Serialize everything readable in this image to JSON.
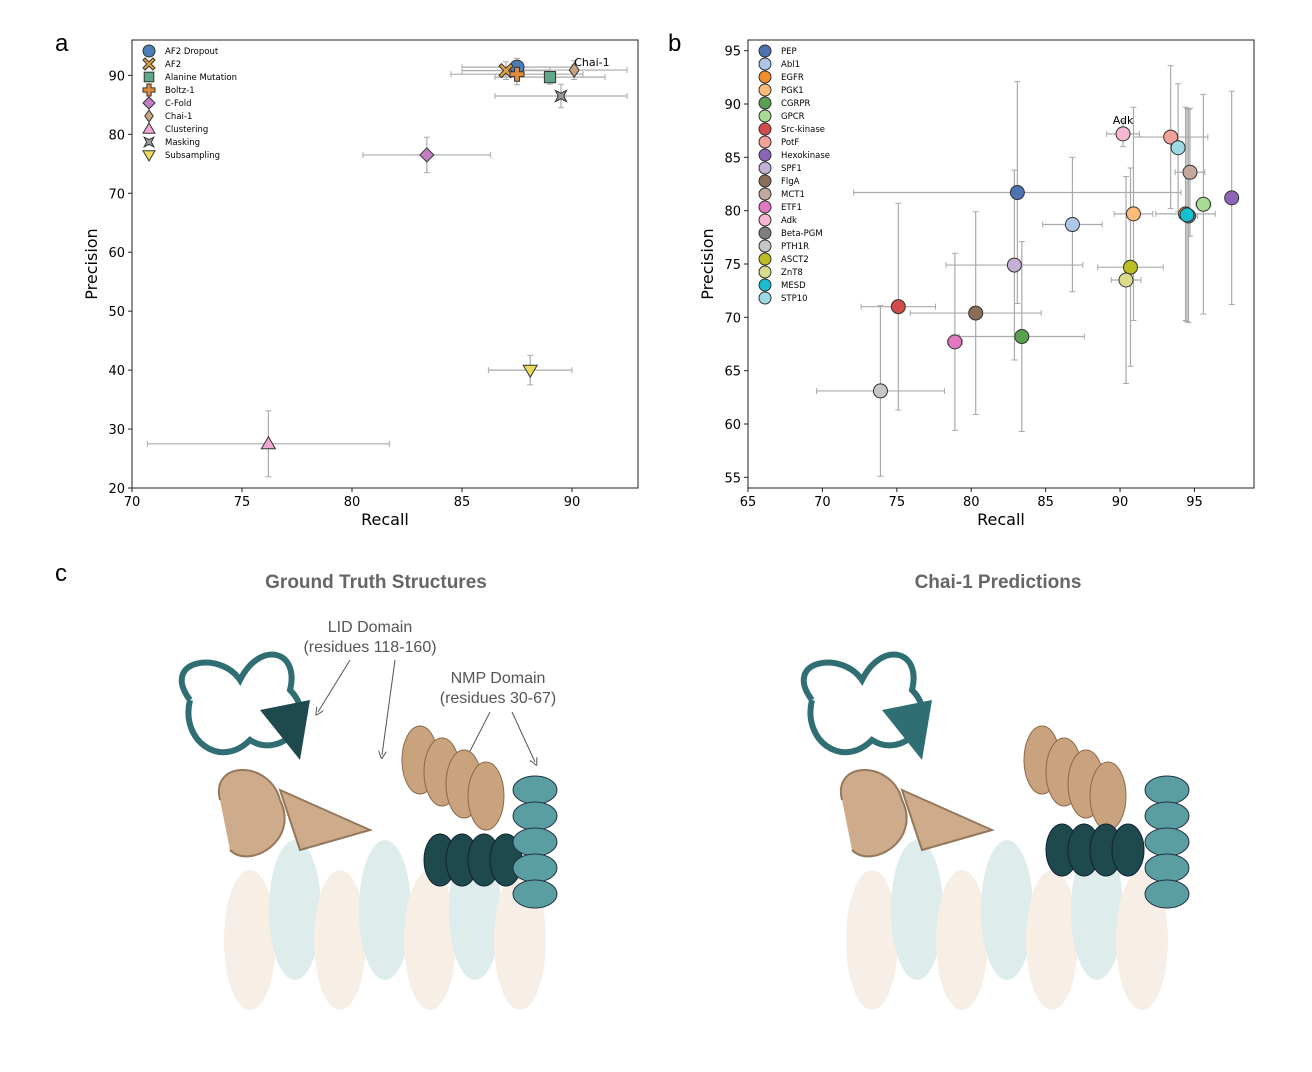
{
  "panels": {
    "a": "a",
    "b": "b",
    "c": "c"
  },
  "chart_data": [
    {
      "type": "scatter",
      "panel": "a",
      "xlabel": "Recall",
      "ylabel": "Precision",
      "xlim": [
        70,
        93
      ],
      "ylim": [
        20,
        96
      ],
      "xticks": [
        70,
        75,
        80,
        85,
        90
      ],
      "yticks": [
        20,
        30,
        40,
        50,
        60,
        70,
        80,
        90
      ],
      "legend": "top-left",
      "annotation": "Chai-1",
      "series": [
        {
          "name": "AF2 Dropout",
          "marker": "circle",
          "color": "#4c7fb8",
          "x": 87.5,
          "y": 91.4,
          "xerr": 2.5,
          "yerr": 1.5
        },
        {
          "name": "AF2",
          "marker": "x",
          "color": "#e0a040",
          "x": 87.0,
          "y": 90.8,
          "xerr": 2.0,
          "yerr": 1.5
        },
        {
          "name": "Alanine Mutation",
          "marker": "square",
          "color": "#5fa88a",
          "x": 89.0,
          "y": 89.7,
          "xerr": 2.5,
          "yerr": 1.2
        },
        {
          "name": "Boltz-1",
          "marker": "plus",
          "color": "#e08a3c",
          "x": 87.5,
          "y": 90.2,
          "xerr": 3.0,
          "yerr": 1.8
        },
        {
          "name": "C-Fold",
          "marker": "diamond",
          "color": "#c27fc4",
          "x": 83.4,
          "y": 76.5,
          "xerr": 2.9,
          "yerr": 3.0
        },
        {
          "name": "Chai-1",
          "marker": "thin-diamond",
          "color": "#c9a27e",
          "x": 90.1,
          "y": 90.9,
          "xerr": 2.4,
          "yerr": 1.6
        },
        {
          "name": "Clustering",
          "marker": "triangle-up",
          "color": "#f2a6d6",
          "x": 76.2,
          "y": 27.5,
          "xerr": 5.5,
          "yerr": 5.6
        },
        {
          "name": "Masking",
          "marker": "bowtie",
          "color": "#9a9a9a",
          "x": 89.5,
          "y": 86.5,
          "xerr": 3.0,
          "yerr": 2.0
        },
        {
          "name": "Subsampling",
          "marker": "triangle-down",
          "color": "#e8dc5a",
          "x": 88.1,
          "y": 40.0,
          "xerr": 1.9,
          "yerr": 2.5
        }
      ]
    },
    {
      "type": "scatter",
      "panel": "b",
      "xlabel": "Recall",
      "ylabel": "Precision",
      "xlim": [
        65,
        99
      ],
      "ylim": [
        54,
        96
      ],
      "xticks": [
        65,
        70,
        75,
        80,
        85,
        90,
        95
      ],
      "yticks": [
        55,
        60,
        65,
        70,
        75,
        80,
        85,
        90,
        95
      ],
      "legend": "top-left",
      "annotation": "Adk",
      "series": [
        {
          "name": "PEP",
          "color": "#4c72b0",
          "x": 83.1,
          "y": 81.7,
          "xerr": 11.0,
          "yerr": 10.4
        },
        {
          "name": "Abl1",
          "color": "#aec7e8",
          "x": 86.8,
          "y": 78.7,
          "xerr": 2.0,
          "yerr": 6.3
        },
        {
          "name": "EGFR",
          "color": "#f28e2b",
          "x": 94.4,
          "y": 79.7,
          "xerr": 2.0,
          "yerr": 10.0
        },
        {
          "name": "PGK1",
          "color": "#ffbb78",
          "x": 90.9,
          "y": 79.7,
          "xerr": 1.3,
          "yerr": 10.0
        },
        {
          "name": "CGRPR",
          "color": "#59a14f",
          "x": 83.4,
          "y": 68.2,
          "xerr": 4.2,
          "yerr": 8.9
        },
        {
          "name": "GPCR",
          "color": "#a8dc94",
          "x": 95.6,
          "y": 80.6,
          "xerr": 0.5,
          "yerr": 10.3
        },
        {
          "name": "Src-kinase",
          "color": "#d14b4b",
          "x": 75.1,
          "y": 71.0,
          "xerr": 2.5,
          "yerr": 9.7
        },
        {
          "name": "PotF",
          "color": "#f4a09a",
          "x": 93.4,
          "y": 86.9,
          "xerr": 2.5,
          "yerr": 6.7
        },
        {
          "name": "Hexokinase",
          "color": "#8c64b8",
          "x": 97.5,
          "y": 81.2,
          "xerr": 0.3,
          "yerr": 10.0
        },
        {
          "name": "SPF1",
          "color": "#c5b0d5",
          "x": 82.9,
          "y": 74.9,
          "xerr": 4.6,
          "yerr": 8.9
        },
        {
          "name": "FlgA",
          "color": "#8c6d5a",
          "x": 80.3,
          "y": 70.4,
          "xerr": 4.4,
          "yerr": 9.5
        },
        {
          "name": "MCT1",
          "color": "#c4a89c",
          "x": 94.7,
          "y": 83.6,
          "xerr": 1.0,
          "yerr": 6.0
        },
        {
          "name": "ETF1",
          "color": "#e377c2",
          "x": 78.9,
          "y": 67.7,
          "xerr": 0.5,
          "yerr": 8.3
        },
        {
          "name": "Adk",
          "color": "#f7b6d2",
          "x": 90.2,
          "y": 87.2,
          "xerr": 1.1,
          "yerr": 1.2
        },
        {
          "name": "Beta-PGM",
          "color": "#7f7f7f",
          "x": 94.6,
          "y": 79.5,
          "xerr": 0.6,
          "yerr": 10.0
        },
        {
          "name": "PTH1R",
          "color": "#c7c7c7",
          "x": 73.9,
          "y": 63.1,
          "xerr": 4.3,
          "yerr": 8.0
        },
        {
          "name": "ASCT2",
          "color": "#bcbd22",
          "x": 90.7,
          "y": 74.7,
          "xerr": 2.2,
          "yerr": 9.3
        },
        {
          "name": "ZnT8",
          "color": "#dbdb8d",
          "x": 90.4,
          "y": 73.5,
          "xerr": 1.0,
          "yerr": 9.7
        },
        {
          "name": "MESD",
          "color": "#17becf",
          "x": 94.5,
          "y": 79.6,
          "xerr": 0.5,
          "yerr": 10.0
        },
        {
          "name": "STP10",
          "color": "#9edae5",
          "x": 93.9,
          "y": 85.9,
          "xerr": 0.5,
          "yerr": 6.0
        }
      ]
    }
  ],
  "panel_c": {
    "left_title": "Ground Truth Structures",
    "right_title": "Chai-1 Predictions",
    "lid_label": [
      "LID Domain",
      "(residues 118-160)"
    ],
    "nmp_label": [
      "NMP Domain",
      "(residues 30-67)"
    ],
    "colors": {
      "teal": "#2f6f73",
      "tan": "#c9a27e"
    }
  }
}
